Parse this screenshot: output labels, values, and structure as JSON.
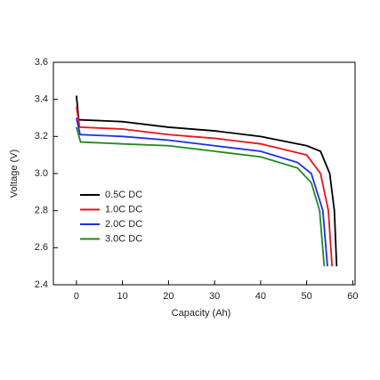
{
  "chart_data": {
    "type": "line",
    "xlabel": "Capacity (Ah)",
    "ylabel": "Voltage (V)",
    "xlim": [
      -5,
      60.5
    ],
    "ylim": [
      2.4,
      3.6
    ],
    "xticks": [
      0,
      10,
      20,
      30,
      40,
      50,
      60
    ],
    "yticks": [
      2.4,
      2.6,
      2.8,
      {
        "value": 3,
        "label": "3.0"
      },
      3.2,
      3.4,
      3.6
    ],
    "legend": "lower-left",
    "series": [
      {
        "name": "0.5C DC",
        "color": "#000000",
        "x": [
          0,
          0.5,
          10,
          20,
          30,
          40,
          50,
          53,
          55,
          56,
          56.5
        ],
        "values": [
          3.42,
          3.29,
          3.28,
          3.25,
          3.23,
          3.2,
          3.15,
          3.12,
          3.0,
          2.8,
          2.5
        ]
      },
      {
        "name": "1.0C DC",
        "color": "#e8131b",
        "x": [
          0,
          0.7,
          10,
          20,
          30,
          40,
          50,
          53,
          54.7,
          55.5
        ],
        "values": [
          3.36,
          3.25,
          3.24,
          3.21,
          3.19,
          3.16,
          3.1,
          3.0,
          2.8,
          2.5
        ]
      },
      {
        "name": "2.0C DC",
        "color": "#1c2ee8",
        "x": [
          0,
          0.8,
          10,
          20,
          30,
          40,
          48,
          51,
          53.5,
          54.5
        ],
        "values": [
          3.3,
          3.21,
          3.2,
          3.18,
          3.15,
          3.12,
          3.06,
          3.0,
          2.8,
          2.5
        ]
      },
      {
        "name": "3.0C DC",
        "color": "#1f8a1f",
        "x": [
          0,
          0.9,
          10,
          20,
          30,
          40,
          48,
          51,
          52.8,
          53.8
        ],
        "values": [
          3.25,
          3.17,
          3.16,
          3.15,
          3.12,
          3.09,
          3.03,
          2.95,
          2.8,
          2.5
        ]
      }
    ]
  }
}
